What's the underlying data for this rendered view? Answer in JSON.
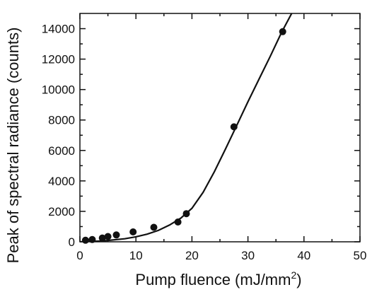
{
  "chart_data": {
    "type": "scatter",
    "title": "",
    "xlabel": "Pump fluence (mJ/mm",
    "xlabel_sup": "2",
    "xlabel_suffix": ")",
    "ylabel": "Peak of spectral radiance (counts)",
    "xlim": [
      0,
      50
    ],
    "ylim": [
      0,
      15000
    ],
    "xticks": [
      0,
      10,
      20,
      30,
      40,
      50
    ],
    "yticks": [
      0,
      2000,
      4000,
      6000,
      8000,
      10000,
      12000,
      14000
    ],
    "grid": false,
    "legend": "none",
    "series": [
      {
        "mark": "point",
        "x": [
          1.0,
          2.2,
          4.0,
          5.0,
          6.5,
          9.5,
          13.2,
          17.5,
          19.0,
          27.5,
          36.2
        ],
        "y": [
          100,
          150,
          250,
          350,
          450,
          650,
          950,
          1300,
          1850,
          7550,
          13800
        ]
      },
      {
        "mark": "line",
        "x": [
          0,
          4,
          8,
          10,
          12,
          14,
          16,
          18,
          20,
          22,
          24,
          26,
          28,
          30,
          32,
          34,
          36,
          37.8
        ],
        "y": [
          0,
          50,
          200,
          330,
          500,
          750,
          1100,
          1550,
          2200,
          3250,
          4600,
          6100,
          7650,
          9200,
          10700,
          12200,
          13750,
          15000
        ]
      }
    ]
  }
}
